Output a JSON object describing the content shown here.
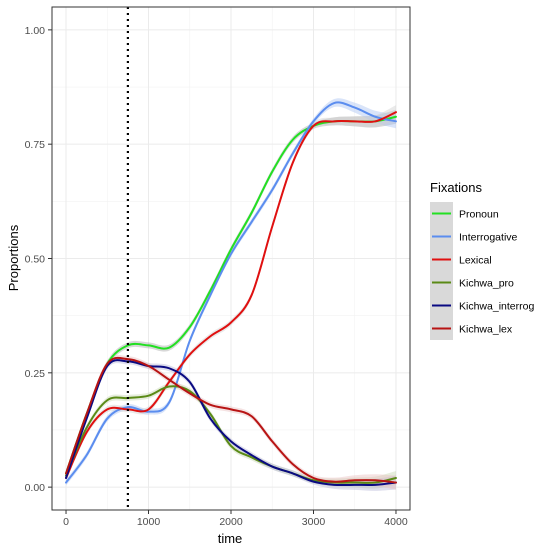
{
  "chart_data": {
    "type": "line",
    "xlabel": "time",
    "ylabel": "Proportions",
    "xlim": [
      -170,
      4170
    ],
    "ylim": [
      -0.05,
      1.05
    ],
    "x_ticks": [
      0,
      1000,
      2000,
      3000,
      4000
    ],
    "x_tick_labels": [
      "0",
      "1000",
      "2000",
      "3000",
      "4000"
    ],
    "y_ticks": [
      0.0,
      0.25,
      0.5,
      0.75,
      1.0
    ],
    "y_tick_labels": [
      "0.00",
      "0.25",
      "0.50",
      "0.75",
      "1.00"
    ],
    "grid": true,
    "vline": {
      "x": 750,
      "style": "dotted"
    },
    "legend": {
      "title": "Fixations",
      "position": "right"
    },
    "series": [
      {
        "name": "Pronoun",
        "color": "#22e022",
        "band": "#a8a8a8",
        "x": [
          0,
          250,
          500,
          750,
          1000,
          1250,
          1500,
          1750,
          2000,
          2250,
          2500,
          2750,
          3000,
          3250,
          3500,
          3750,
          4000
        ],
        "y": [
          0.03,
          0.16,
          0.27,
          0.31,
          0.31,
          0.305,
          0.35,
          0.43,
          0.52,
          0.6,
          0.69,
          0.76,
          0.79,
          0.8,
          0.8,
          0.8,
          0.81
        ]
      },
      {
        "name": "Interrogative",
        "color": "#5b8def",
        "band": "#aac4f2",
        "x": [
          0,
          250,
          500,
          750,
          1000,
          1250,
          1500,
          1750,
          2000,
          2250,
          2500,
          2750,
          3000,
          3250,
          3500,
          3750,
          4000
        ],
        "y": [
          0.01,
          0.07,
          0.15,
          0.175,
          0.165,
          0.185,
          0.32,
          0.42,
          0.51,
          0.58,
          0.65,
          0.73,
          0.8,
          0.84,
          0.83,
          0.81,
          0.8
        ]
      },
      {
        "name": "Lexical",
        "color": "#e01010",
        "band": "#d0d0d0",
        "x": [
          0,
          250,
          500,
          750,
          1000,
          1250,
          1500,
          1750,
          2000,
          2250,
          2500,
          2750,
          3000,
          3250,
          3500,
          3750,
          4000
        ],
        "y": [
          0.02,
          0.12,
          0.17,
          0.17,
          0.17,
          0.23,
          0.29,
          0.33,
          0.36,
          0.42,
          0.57,
          0.71,
          0.79,
          0.8,
          0.8,
          0.8,
          0.82
        ]
      },
      {
        "name": "Kichwa_pro",
        "color": "#5a8a16",
        "band": "#c8d7b4",
        "x": [
          0,
          250,
          500,
          750,
          1000,
          1250,
          1500,
          1750,
          2000,
          2250,
          2500,
          2750,
          3000,
          3250,
          3500,
          3750,
          4000
        ],
        "y": [
          0.025,
          0.13,
          0.19,
          0.195,
          0.2,
          0.22,
          0.21,
          0.16,
          0.09,
          0.065,
          0.045,
          0.03,
          0.015,
          0.01,
          0.01,
          0.01,
          0.02
        ]
      },
      {
        "name": "Kichwa_interrog",
        "color": "#0a0a82",
        "band": "#b8b8d8",
        "x": [
          0,
          250,
          500,
          750,
          1000,
          1250,
          1500,
          1750,
          2000,
          2250,
          2500,
          2750,
          3000,
          3250,
          3500,
          3750,
          4000
        ],
        "y": [
          0.02,
          0.15,
          0.265,
          0.275,
          0.265,
          0.26,
          0.23,
          0.15,
          0.1,
          0.07,
          0.045,
          0.03,
          0.012,
          0.005,
          0.005,
          0.005,
          0.01
        ]
      },
      {
        "name": "Kichwa_lex",
        "color": "#b81414",
        "band": "#e8c0c0",
        "x": [
          0,
          250,
          500,
          750,
          1000,
          1250,
          1500,
          1750,
          2000,
          2250,
          2500,
          2750,
          3000,
          3250,
          3500,
          3750,
          4000
        ],
        "y": [
          0.03,
          0.16,
          0.27,
          0.28,
          0.265,
          0.235,
          0.205,
          0.18,
          0.17,
          0.155,
          0.1,
          0.05,
          0.02,
          0.012,
          0.015,
          0.015,
          0.01
        ]
      }
    ]
  }
}
